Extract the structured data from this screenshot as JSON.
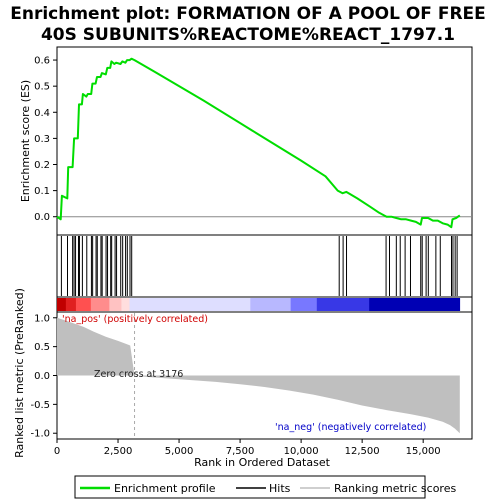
{
  "chart_data": {
    "type": "line",
    "title_line1": "Enrichment plot: FORMATION OF A POOL OF FREE",
    "title_line2": "40S SUBUNITS%REACTOME%REACT_1797.1",
    "xlabel": "Rank in Ordered Dataset",
    "ylabel_top": "Enrichment score (ES)",
    "ylabel_bottom": "Ranked list metric (PreRanked)",
    "xlim": [
      0,
      17000
    ],
    "n_genes": 16500,
    "es_ylim": [
      -0.07,
      0.65
    ],
    "es_yticks": [
      "0.0",
      "0.1",
      "0.2",
      "0.3",
      "0.4",
      "0.5",
      "0.6"
    ],
    "es_ytick_values": [
      0.0,
      0.1,
      0.2,
      0.3,
      0.4,
      0.5,
      0.6
    ],
    "xticks": [
      "0",
      "2,500",
      "5,000",
      "7,500",
      "10,000",
      "12,500",
      "15,000"
    ],
    "xtick_values": [
      0,
      2500,
      5000,
      7500,
      10000,
      12500,
      15000
    ],
    "metric_ylim": [
      -1.1,
      1.1
    ],
    "metric_yticks": [
      "1.0",
      "0.5",
      "0.0",
      "-0.5",
      "-1.0"
    ],
    "metric_ytick_values": [
      1.0,
      0.5,
      0.0,
      -0.5,
      -1.0
    ],
    "zero_cross": 3176,
    "zero_cross_label": "Zero cross at 3176",
    "pos_label": "'na_pos' (positively correlated)",
    "neg_label": "'na_neg' (negatively correlated)",
    "legend": [
      "Enrichment profile",
      "Hits",
      "Ranking metric scores"
    ],
    "colors": {
      "profile": "#00dd00",
      "hits": "#000000",
      "metric": "#bfbfbf"
    },
    "es_profile": {
      "x": [
        0,
        150,
        200,
        420,
        460,
        640,
        700,
        850,
        900,
        1020,
        1060,
        1200,
        1260,
        1400,
        1450,
        1580,
        1640,
        1780,
        1840,
        2000,
        2060,
        2180,
        2230,
        2350,
        2420,
        2600,
        2680,
        2800,
        2870,
        2980,
        3050,
        3176,
        4000,
        6000,
        8000,
        10000,
        11000,
        11500,
        11700,
        11850,
        12300,
        12800,
        13200,
        13500,
        13700,
        13900,
        14100,
        14300,
        14500,
        14700,
        14900,
        14950,
        15200,
        15400,
        15600,
        15800,
        16000,
        16150,
        16200,
        16350,
        16500
      ],
      "y": [
        0.0,
        -0.01,
        0.08,
        0.07,
        0.19,
        0.19,
        0.3,
        0.3,
        0.43,
        0.43,
        0.47,
        0.46,
        0.47,
        0.47,
        0.51,
        0.51,
        0.535,
        0.535,
        0.55,
        0.545,
        0.57,
        0.57,
        0.595,
        0.585,
        0.59,
        0.585,
        0.595,
        0.59,
        0.6,
        0.6,
        0.605,
        0.6,
        0.555,
        0.445,
        0.33,
        0.215,
        0.155,
        0.1,
        0.09,
        0.095,
        0.07,
        0.04,
        0.015,
        0.0,
        0.0,
        -0.005,
        -0.01,
        -0.01,
        -0.015,
        -0.02,
        -0.03,
        -0.005,
        -0.005,
        -0.015,
        -0.015,
        -0.025,
        -0.03,
        -0.04,
        -0.01,
        -0.005,
        0.005
      ]
    },
    "hits": [
      180,
      430,
      640,
      700,
      760,
      880,
      920,
      1040,
      1220,
      1410,
      1460,
      1600,
      1650,
      1800,
      1850,
      2010,
      2070,
      2200,
      2240,
      2380,
      2440,
      2610,
      2690,
      2810,
      2880,
      2990,
      3060,
      11560,
      11720,
      11860,
      13480,
      13620,
      13900,
      14060,
      14260,
      14480,
      14900,
      14960,
      15120,
      15210,
      15520,
      15700,
      16160,
      16220,
      16310,
      16390
    ],
    "metric": {
      "x": [
        0,
        300,
        700,
        1100,
        1500,
        2000,
        2500,
        3000,
        3176,
        3600,
        4500,
        5500,
        6500,
        7500,
        8500,
        9500,
        10500,
        11500,
        12500,
        13500,
        14500,
        15200,
        15800,
        16100,
        16300,
        16500
      ],
      "y": [
        1.0,
        0.96,
        0.9,
        0.84,
        0.76,
        0.67,
        0.6,
        0.52,
        0.0,
        -0.02,
        -0.05,
        -0.08,
        -0.11,
        -0.15,
        -0.2,
        -0.26,
        -0.33,
        -0.42,
        -0.52,
        -0.6,
        -0.67,
        -0.73,
        -0.8,
        -0.86,
        -0.92,
        -1.0
      ]
    },
    "color_bar": [
      {
        "from": 0,
        "to": 0.022,
        "color": "#c00000"
      },
      {
        "from": 0.022,
        "to": 0.047,
        "color": "#e02020"
      },
      {
        "from": 0.047,
        "to": 0.084,
        "color": "#ff5050"
      },
      {
        "from": 0.084,
        "to": 0.13,
        "color": "#ff8c8c"
      },
      {
        "from": 0.13,
        "to": 0.16,
        "color": "#ffc2c2"
      },
      {
        "from": 0.16,
        "to": 0.18,
        "color": "#ffdede"
      },
      {
        "from": 0.18,
        "to": 0.48,
        "color": "#dedeff"
      },
      {
        "from": 0.48,
        "to": 0.58,
        "color": "#b8b8ff"
      },
      {
        "from": 0.58,
        "to": 0.645,
        "color": "#7878ff"
      },
      {
        "from": 0.645,
        "to": 0.775,
        "color": "#3838e6"
      },
      {
        "from": 0.775,
        "to": 1.0,
        "color": "#0000b4"
      }
    ]
  }
}
